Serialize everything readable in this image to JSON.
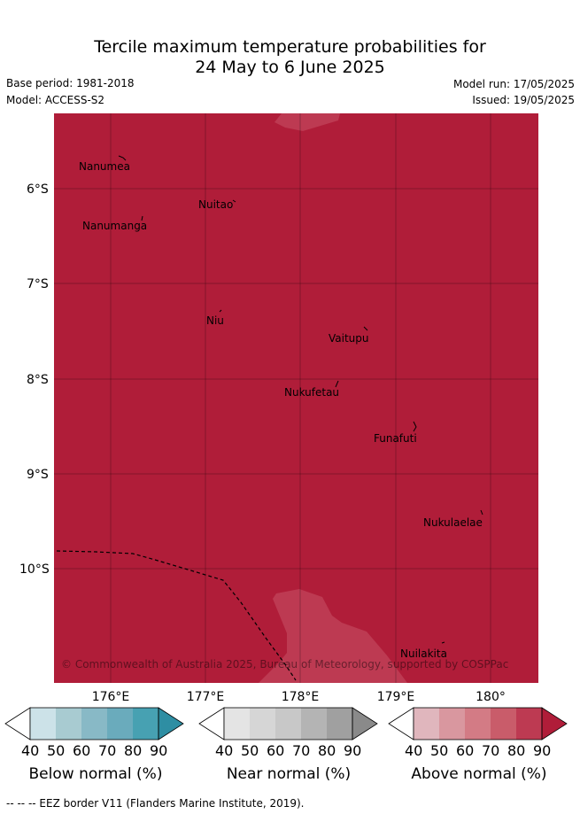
{
  "header": {
    "title_line1": "Tercile maximum temperature probabilities for",
    "title_line2": "24 May to 6 June 2025",
    "base_period": "Base period: 1981-2018",
    "model": "Model: ACCESS-S2",
    "model_run": "Model run: 17/05/2025",
    "issued": "Issued: 19/05/2025"
  },
  "map": {
    "base_color": "#b01d39",
    "light_patch_color": "#bd3a52",
    "lon_labels": [
      "176°E",
      "177°E",
      "178°E",
      "179°E",
      "180°"
    ],
    "lat_labels": [
      "6°S",
      "7°S",
      "8°S",
      "9°S",
      "10°S"
    ],
    "places": [
      "Nanumea",
      "Nuitao",
      "Nanumanga",
      "Niu",
      "Vaitupu",
      "Nukufetau",
      "Funafuti",
      "Nukulaelae",
      "Nuilakita"
    ],
    "copyright": "© Commonwealth of Australia 2025, Bureau of Meteorology, supported by COSPPac"
  },
  "colorbars": [
    {
      "title": "Below normal (%)",
      "ticks": [
        "40",
        "50",
        "60",
        "70",
        "80",
        "90"
      ],
      "colors": [
        "#ffffff",
        "#cce2e8",
        "#a8cbd1",
        "#88b9c6",
        "#6aabbc",
        "#47a1b2",
        "#2e8ea3"
      ]
    },
    {
      "title": "Near normal (%)",
      "ticks": [
        "40",
        "50",
        "60",
        "70",
        "80",
        "90"
      ],
      "colors": [
        "#ffffff",
        "#e4e4e4",
        "#d6d6d6",
        "#c8c8c8",
        "#b4b4b4",
        "#a0a0a0",
        "#8a8a8a"
      ]
    },
    {
      "title": "Above normal (%)",
      "ticks": [
        "40",
        "50",
        "60",
        "70",
        "80",
        "90"
      ],
      "colors": [
        "#ffffff",
        "#e0b6bd",
        "#d9979f",
        "#d37b85",
        "#c95c6a",
        "#bd3a52",
        "#b01d39"
      ]
    }
  ],
  "footer": {
    "legend": "-- -- -- EEZ border V11 (Flanders Marine Institute, 2019)."
  }
}
